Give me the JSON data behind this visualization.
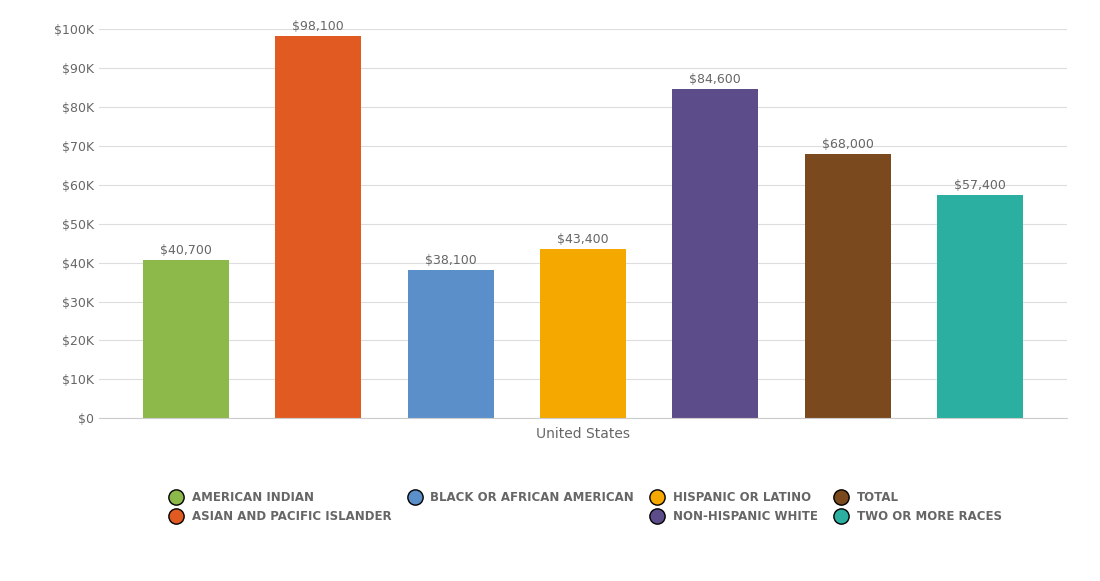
{
  "categories": [
    "AMERICAN INDIAN",
    "ASIAN AND PACIFIC ISLANDER",
    "BLACK OR AFRICAN AMERICAN",
    "HISPANIC OR LATINO",
    "NON-HISPANIC WHITE",
    "TOTAL",
    "TWO OR MORE RACES"
  ],
  "values": [
    40700,
    98100,
    38100,
    43400,
    84600,
    68000,
    57400
  ],
  "bar_colors": [
    "#8db84a",
    "#e05a21",
    "#5b8fc9",
    "#f5a800",
    "#5c4d8a",
    "#7a4a1e",
    "#2aafa0"
  ],
  "labels": [
    "$40,700",
    "$98,100",
    "$38,100",
    "$43,400",
    "$84,600",
    "$68,000",
    "$57,400"
  ],
  "xlabel": "United States",
  "ylim": [
    0,
    100000
  ],
  "yticks": [
    0,
    10000,
    20000,
    30000,
    40000,
    50000,
    60000,
    70000,
    80000,
    90000,
    100000
  ],
  "ytick_labels": [
    "$0",
    "$10K",
    "$20K",
    "$30K",
    "$40K",
    "$50K",
    "$60K",
    "$70K",
    "$80K",
    "$90K",
    "$100K"
  ],
  "background_color": "#ffffff",
  "legend_row1": [
    "AMERICAN INDIAN",
    "ASIAN AND PACIFIC ISLANDER",
    "BLACK OR AFRICAN AMERICAN"
  ],
  "legend_row1_colors": [
    "#8db84a",
    "#e05a21",
    "#5b8fc9"
  ],
  "legend_row2": [
    "HISPANIC OR LATINO",
    "NON-HISPANIC WHITE",
    "TOTAL",
    "TWO OR MORE RACES"
  ],
  "legend_row2_colors": [
    "#f5a800",
    "#5c4d8a",
    "#7a4a1e",
    "#2aafa0"
  ],
  "bar_label_fontsize": 9,
  "xlabel_fontsize": 10,
  "legend_fontsize": 8.5,
  "tick_fontsize": 9,
  "text_color": "#666666"
}
